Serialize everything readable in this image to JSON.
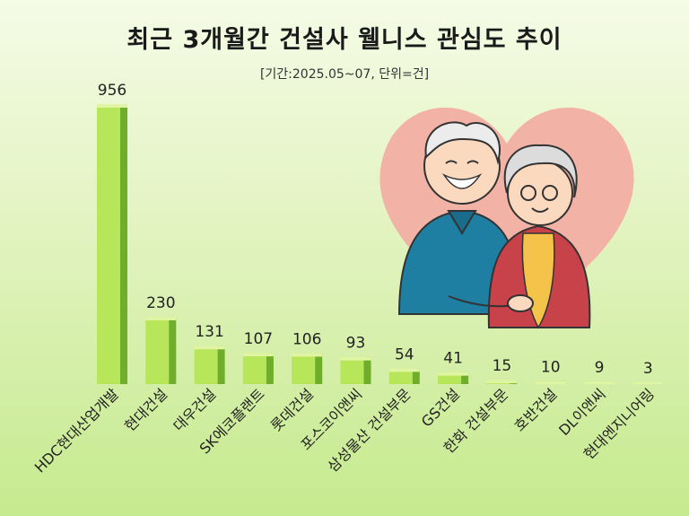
{
  "title": "최근 3개월간 건설사 웰니스 관심도 추이",
  "subtitle": "[기간:2025.05~07, 단위=건]",
  "colors": {
    "bar_front": "#b8e65a",
    "bar_side": "#6fae2a",
    "bar_top": "#dff5a4",
    "heart": "#f2b3a6"
  },
  "illustration": {
    "description_icon": "elderly-couple-icon"
  },
  "chart_data": {
    "type": "bar",
    "title": "최근 3개월간 건설사 웰니스 관심도 추이",
    "subtitle": "[기간:2025.05~07, 단위=건]",
    "categories": [
      "HDC현대산업개발",
      "현대건설",
      "대우건설",
      "SK에코플랜트",
      "롯데건설",
      "포스코이앤씨",
      "삼성물산 건설부문",
      "GS건설",
      "한화 건설부문",
      "호반건설",
      "DL이앤씨",
      "현대엔지니어링"
    ],
    "values": [
      956,
      230,
      131,
      107,
      106,
      93,
      54,
      41,
      15,
      10,
      9,
      3
    ],
    "ylim": [
      0,
      956
    ],
    "grid": false,
    "legend": "none"
  }
}
